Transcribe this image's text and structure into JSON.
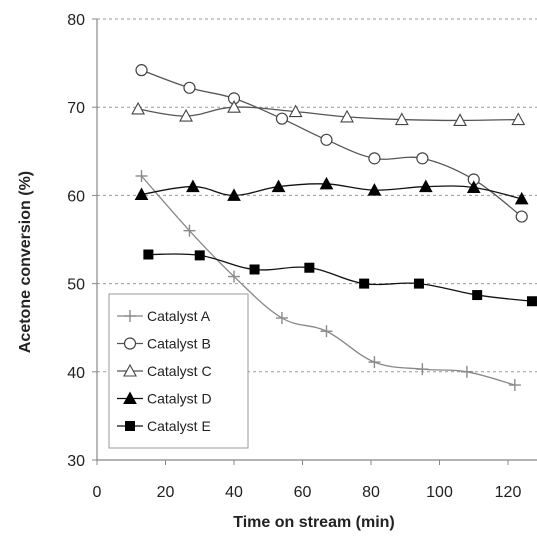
{
  "chart_data": {
    "type": "line",
    "xlabel": "Time on stream (min)",
    "ylabel": "Acetone conversion (%)",
    "xlim": [
      0,
      125
    ],
    "ylim": [
      30,
      80
    ],
    "xticks": [
      0,
      20,
      40,
      60,
      80,
      100,
      120
    ],
    "yticks": [
      30,
      40,
      50,
      60,
      70,
      80
    ],
    "grid": "horizontal dashed",
    "legend_position": "bottom-left",
    "series": [
      {
        "name": "Catalyst A",
        "marker": "plus",
        "color": "#8a8a8a",
        "x": [
          13,
          27,
          40,
          54,
          67,
          81,
          95,
          108,
          122
        ],
        "y": [
          62.2,
          56.0,
          50.8,
          46.1,
          44.6,
          41.1,
          40.3,
          40.0,
          38.5
        ]
      },
      {
        "name": "Catalyst B",
        "marker": "circle-open",
        "color": "#555555",
        "x": [
          13,
          27,
          40,
          54,
          67,
          81,
          95,
          110,
          124
        ],
        "y": [
          74.2,
          72.2,
          71.0,
          68.7,
          66.3,
          64.2,
          64.2,
          61.8,
          57.6
        ]
      },
      {
        "name": "Catalyst C",
        "marker": "triangle-open",
        "color": "#555555",
        "x": [
          12,
          26,
          40,
          58,
          73,
          89,
          106,
          123
        ],
        "y": [
          69.8,
          69.0,
          70.0,
          69.5,
          68.9,
          68.6,
          68.5,
          68.6
        ]
      },
      {
        "name": "Catalyst D",
        "marker": "triangle-filled",
        "color": "#000000",
        "x": [
          13,
          28,
          40,
          53,
          67,
          81,
          96,
          110,
          124
        ],
        "y": [
          60.1,
          61.0,
          60.0,
          61.0,
          61.3,
          60.6,
          61.0,
          60.9,
          59.6
        ]
      },
      {
        "name": "Catalyst E",
        "marker": "square-filled",
        "color": "#000000",
        "x": [
          15,
          30,
          46,
          62,
          78,
          94,
          111,
          127
        ],
        "y": [
          53.3,
          53.2,
          51.6,
          51.8,
          50.0,
          50.0,
          48.7,
          48.0
        ]
      }
    ]
  }
}
